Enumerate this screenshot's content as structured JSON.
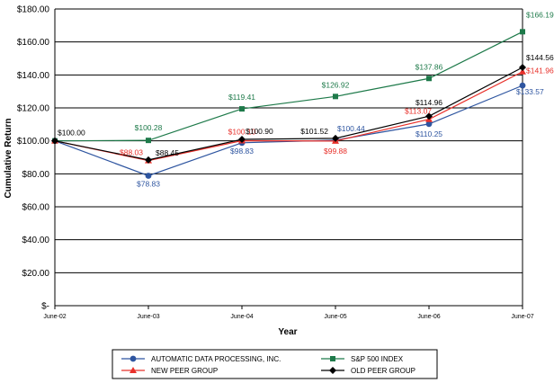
{
  "chart_data": {
    "type": "line",
    "title": "",
    "xlabel": "Year",
    "ylabel": "Cumulative Return",
    "categories": [
      "June-02",
      "June-03",
      "June-04",
      "June-05",
      "June-06",
      "June-07"
    ],
    "ylim": [
      0,
      180
    ],
    "ytick_labels": [
      "$-",
      "$20.00",
      "$40.00",
      "$60.00",
      "$80.00",
      "$100.00",
      "$120.00",
      "$140.00",
      "$160.00",
      "$180.00"
    ],
    "grid": true,
    "legend_position": "bottom",
    "series": [
      {
        "name": "AUTOMATIC DATA PROCESSING, INC.",
        "color": "#2e55a0",
        "marker": "circle",
        "values": [
          100.0,
          78.83,
          98.83,
          100.44,
          110.25,
          133.57
        ],
        "labels": [
          "",
          "$78.83",
          "$98.83",
          "$100.44",
          "$110.25",
          "$133.57"
        ]
      },
      {
        "name": "S&P 500 INDEX",
        "color": "#1e7a4a",
        "marker": "square",
        "values": [
          100.0,
          100.28,
          119.41,
          126.92,
          137.86,
          166.19
        ],
        "labels": [
          "",
          "$100.28",
          "$119.41",
          "$126.92",
          "$137.86",
          "$166.19"
        ]
      },
      {
        "name": "NEW PEER GROUP",
        "color": "#e8302a",
        "marker": "triangle",
        "values": [
          100.0,
          88.03,
          100.1,
          99.88,
          113.07,
          141.96
        ],
        "labels": [
          "",
          "$88.03",
          "$100.10",
          "$99.88",
          "$113.07",
          "$141.96"
        ]
      },
      {
        "name": "OLD PEER GROUP",
        "color": "#000000",
        "marker": "diamond",
        "values": [
          100.0,
          88.45,
          100.9,
          101.52,
          114.96,
          144.56
        ],
        "labels": [
          "$100.00",
          "$88.45",
          "$100.90",
          "$101.52",
          "$114.96",
          "$144.56"
        ]
      }
    ]
  }
}
